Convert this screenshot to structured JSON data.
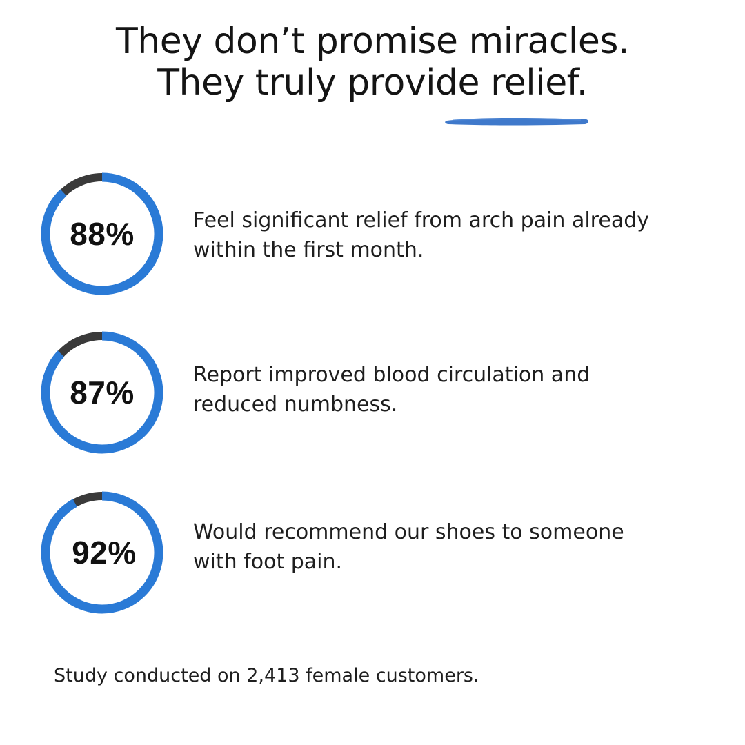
{
  "headline": {
    "line1": "They don’t promise miracles.",
    "line2": "They truly provide relief."
  },
  "colors": {
    "ring_fill": "#2a7ad6",
    "ring_track": "#3a3a3a",
    "underline": "#2f6ec7"
  },
  "stats": [
    {
      "percent_label": "88%",
      "percent_value": 88,
      "text_line1": "Feel significant relief from arch pain already",
      "text_line2": "within the first month."
    },
    {
      "percent_label": "87%",
      "percent_value": 87,
      "text_line1": "Report improved blood circulation and",
      "text_line2": "reduced numbness."
    },
    {
      "percent_label": "92%",
      "percent_value": 92,
      "text_line1": "Would recommend our shoes to someone",
      "text_line2": "with foot pain."
    }
  ],
  "footnote": "Study conducted on 2,413 female customers."
}
